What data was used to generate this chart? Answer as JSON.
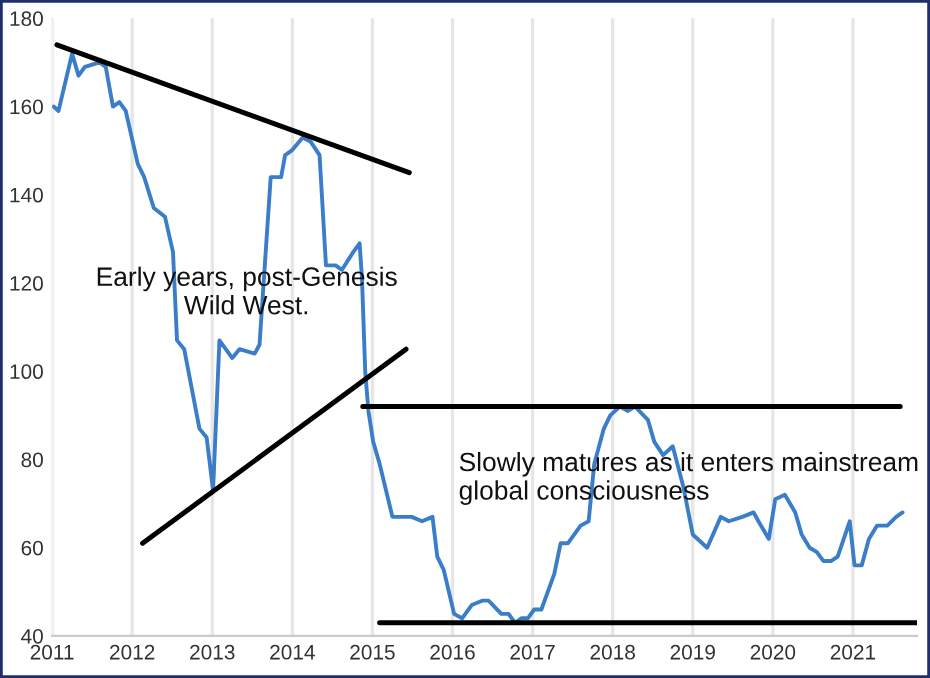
{
  "chart_data": {
    "type": "line",
    "x": [
      2011.02,
      2011.08,
      2011.25,
      2011.33,
      2011.41,
      2011.59,
      2011.67,
      2011.76,
      2011.84,
      2011.92,
      2012.07,
      2012.15,
      2012.27,
      2012.41,
      2012.51,
      2012.56,
      2012.65,
      2012.84,
      2012.93,
      2013.01,
      2013.09,
      2013.25,
      2013.34,
      2013.53,
      2013.59,
      2013.73,
      2013.86,
      2013.91,
      2013.99,
      2014.13,
      2014.23,
      2014.34,
      2014.42,
      2014.54,
      2014.62,
      2014.76,
      2014.84,
      2014.87,
      2014.91,
      2014.95,
      2015.01,
      2015.09,
      2015.25,
      2015.38,
      2015.49,
      2015.62,
      2015.75,
      2015.81,
      2015.89,
      2016.02,
      2016.12,
      2016.24,
      2016.37,
      2016.45,
      2016.61,
      2016.7,
      2016.78,
      2016.86,
      2016.94,
      2017.02,
      2017.11,
      2017.27,
      2017.35,
      2017.44,
      2017.6,
      2017.7,
      2017.77,
      2017.89,
      2017.97,
      2018.09,
      2018.19,
      2018.28,
      2018.44,
      2018.52,
      2018.63,
      2018.75,
      2018.88,
      2019.0,
      2019.18,
      2019.35,
      2019.45,
      2019.62,
      2019.76,
      2019.82,
      2019.95,
      2020.03,
      2020.15,
      2020.28,
      2020.36,
      2020.46,
      2020.55,
      2020.63,
      2020.73,
      2020.81,
      2020.96,
      2021.02,
      2021.11,
      2021.2,
      2021.3,
      2021.43,
      2021.54,
      2021.62
    ],
    "series": [
      {
        "color": "#3a7dc9",
        "values": [
          160,
          159,
          172,
          167,
          169,
          170,
          169,
          160,
          161,
          159,
          147,
          144,
          137,
          135,
          127,
          107,
          105,
          87,
          85,
          73,
          107,
          103,
          105,
          104,
          106,
          144,
          144,
          149,
          150,
          153,
          152,
          149,
          124,
          124,
          123,
          127,
          129,
          121,
          100,
          91,
          84,
          79,
          67,
          67,
          67,
          66,
          67,
          58,
          55,
          45,
          44,
          47,
          48,
          48,
          45,
          45,
          43,
          44,
          44,
          46,
          46,
          54,
          61,
          61,
          65,
          66,
          79,
          87,
          90,
          92,
          91,
          92,
          89,
          84,
          81,
          83,
          74,
          63,
          60,
          67,
          66,
          67,
          68,
          66,
          62,
          71,
          72,
          68,
          63,
          60,
          59,
          57,
          57,
          58,
          66,
          56,
          56,
          62,
          65,
          65,
          67,
          68
        ]
      },
      {
        "type": "line",
        "color": "#000000",
        "x": [
          2011.06,
          2015.46
        ],
        "values": [
          174,
          145
        ]
      },
      {
        "type": "line",
        "color": "#000000",
        "x": [
          2012.13,
          2015.42
        ],
        "values": [
          61,
          105
        ]
      },
      {
        "type": "line",
        "color": "#000000",
        "x": [
          2014.88,
          2021.59
        ],
        "values": [
          92,
          92
        ]
      },
      {
        "type": "line",
        "color": "#000000",
        "x": [
          2015.09,
          2021.8
        ],
        "values": [
          43,
          43
        ]
      }
    ],
    "xlim": [
      2011,
      2021.8
    ],
    "xticks": [
      2011,
      2012,
      2013,
      2014,
      2015,
      2016,
      2017,
      2018,
      2019,
      2020,
      2021
    ],
    "ylim": [
      40,
      180
    ],
    "yticks": [
      40,
      60,
      80,
      100,
      120,
      140,
      160,
      180
    ],
    "grid": "x",
    "marker": "none",
    "line_style": "solid",
    "annotations": [
      "Early years, post-Genesis\nWild West.",
      "Slowly matures as it enters mainstream\nglobal consciousness"
    ]
  }
}
